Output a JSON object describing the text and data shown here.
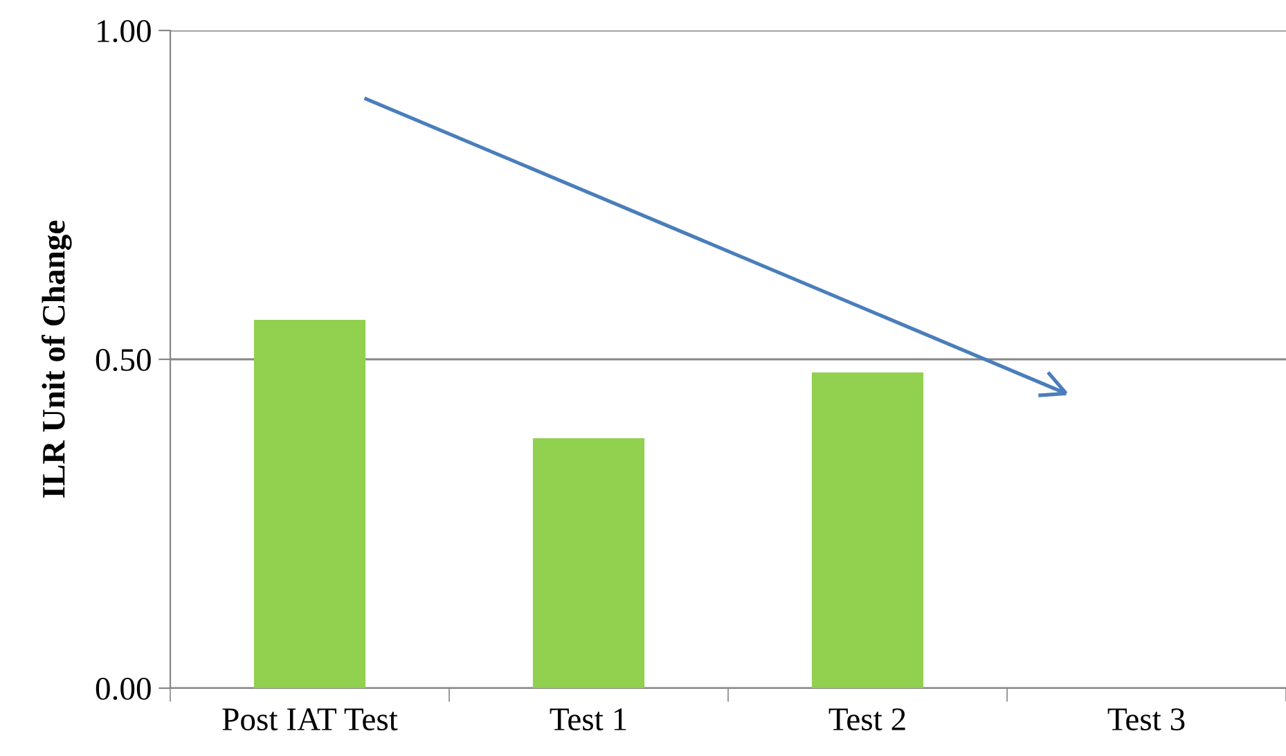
{
  "chart_data": {
    "type": "bar",
    "ylabel": "ILR Unit of Change",
    "categories": [
      "Post IAT Test",
      "Test 1",
      "Test 2",
      "Test 3"
    ],
    "values": [
      0.56,
      0.38,
      0.48,
      null
    ],
    "color": "#92d050",
    "ylim": [
      0,
      1
    ],
    "yticks": [
      {
        "value": 0,
        "label": "0.00"
      },
      {
        "value": 0.5,
        "label": "0.50"
      },
      {
        "value": 1,
        "label": "1.00"
      }
    ],
    "grid": "y",
    "legend": false
  }
}
